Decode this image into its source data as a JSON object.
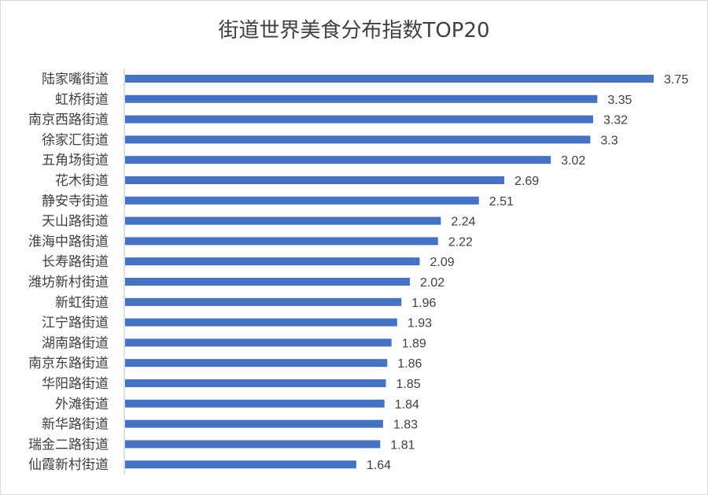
{
  "chart_data": {
    "type": "bar",
    "orientation": "horizontal",
    "title": "街道世界美食分布指数TOP20",
    "categories": [
      "陆家嘴街道",
      "虹桥街道",
      "南京西路街道",
      "徐家汇街道",
      "五角场街道",
      "花木街道",
      "静安寺街道",
      "天山路街道",
      "淮海中路街道",
      "长寿路街道",
      "潍坊新村街道",
      "新虹街道",
      "江宁路街道",
      "湖南路街道",
      "南京东路街道",
      "华阳路街道",
      "外滩街道",
      "新华路街道",
      "瑞金二路街道",
      "仙霞新村街道"
    ],
    "values": [
      3.75,
      3.35,
      3.32,
      3.3,
      3.02,
      2.69,
      2.51,
      2.24,
      2.22,
      2.09,
      2.02,
      1.96,
      1.93,
      1.89,
      1.86,
      1.85,
      1.84,
      1.83,
      1.81,
      1.64
    ],
    "value_labels": [
      "3.75",
      "3.35",
      "3.32",
      "3.3",
      "3.02",
      "2.69",
      "2.51",
      "2.24",
      "2.22",
      "2.09",
      "2.02",
      "1.96",
      "1.93",
      "1.89",
      "1.86",
      "1.85",
      "1.84",
      "1.83",
      "1.81",
      "1.64"
    ],
    "xlim": [
      0,
      3.75
    ],
    "bar_color": "#4472c4",
    "axis_color": "#bfbfbf",
    "grid": false,
    "legend": "none",
    "data_labels": true
  }
}
